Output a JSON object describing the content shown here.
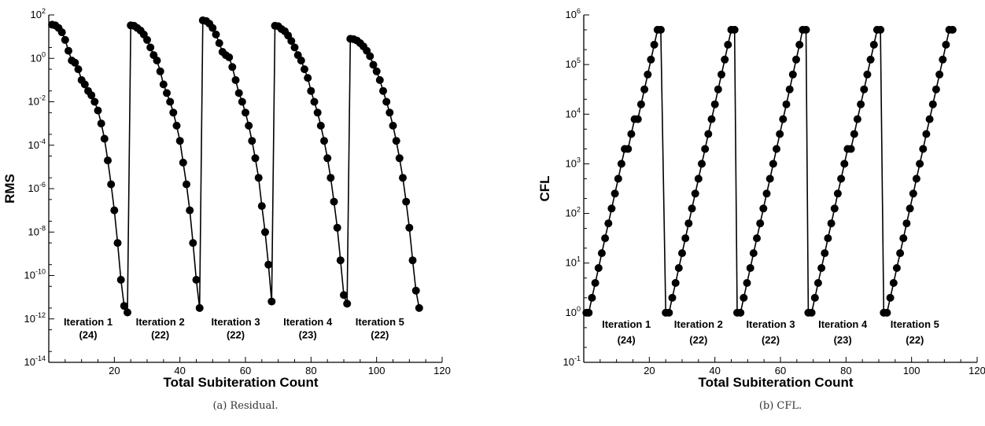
{
  "chart_data": [
    {
      "type": "scatter",
      "caption": "(a) Residual.",
      "xlabel": "Total Subiteration Count",
      "ylabel": "RMS",
      "xscale": "linear",
      "yscale": "log",
      "xlim": [
        0,
        120
      ],
      "ylim_exp": [
        -14,
        2
      ],
      "xticks": [
        20,
        40,
        60,
        80,
        100,
        120
      ],
      "yticks_exp": [
        -14,
        -12,
        -10,
        -8,
        -6,
        -4,
        -2,
        0,
        2
      ],
      "grid": false,
      "series": [
        {
          "x": [
            1,
            2,
            3,
            4,
            5,
            6,
            7,
            8,
            9,
            10,
            11,
            12,
            13,
            14,
            15,
            16,
            17,
            18,
            19,
            20,
            21,
            22,
            23,
            24,
            25,
            26,
            27,
            28,
            29,
            30,
            31,
            32,
            33,
            34,
            35,
            36,
            37,
            38,
            39,
            40,
            41,
            42,
            43,
            44,
            45,
            46,
            47,
            48,
            49,
            50,
            51,
            52,
            53,
            54,
            55,
            56,
            57,
            58,
            59,
            60,
            61,
            62,
            63,
            64,
            65,
            66,
            67,
            68,
            69,
            70,
            71,
            72,
            73,
            74,
            75,
            76,
            77,
            78,
            79,
            80,
            81,
            82,
            83,
            84,
            85,
            86,
            87,
            88,
            89,
            90,
            91,
            92,
            93,
            94,
            95,
            96,
            97,
            98,
            99,
            100,
            101,
            102,
            103,
            104,
            105,
            106,
            107,
            108,
            109,
            110,
            111,
            112,
            113
          ],
          "y_exp": [
            1.55,
            1.52,
            1.4,
            1.2,
            0.85,
            0.35,
            -0.1,
            -0.2,
            -0.5,
            -1.0,
            -1.2,
            -1.5,
            -1.7,
            -2.0,
            -2.4,
            -3.0,
            -3.7,
            -4.7,
            -5.8,
            -7.0,
            -8.5,
            -10.2,
            -11.4,
            -11.7,
            1.52,
            1.5,
            1.4,
            1.28,
            1.1,
            0.85,
            0.5,
            0.15,
            -0.1,
            -0.6,
            -1.2,
            -1.6,
            -2.0,
            -2.5,
            -3.1,
            -3.8,
            -4.8,
            -5.8,
            -7.0,
            -8.5,
            -10.2,
            -11.5,
            1.75,
            1.72,
            1.6,
            1.4,
            1.1,
            0.7,
            0.3,
            0.15,
            0.05,
            -0.4,
            -1.0,
            -1.6,
            -2.0,
            -2.5,
            -3.1,
            -3.8,
            -4.6,
            -5.5,
            -6.8,
            -8.0,
            -9.5,
            -11.2,
            1.5,
            1.48,
            1.35,
            1.25,
            1.05,
            0.8,
            0.5,
            0.15,
            -0.1,
            -0.5,
            -0.9,
            -1.5,
            -2.0,
            -2.5,
            -3.1,
            -3.8,
            -4.6,
            -5.5,
            -6.6,
            -7.8,
            -9.3,
            -10.9,
            -11.3,
            0.9,
            0.88,
            0.82,
            0.7,
            0.55,
            0.35,
            0.1,
            -0.3,
            -0.6,
            -1.0,
            -1.5,
            -2.0,
            -2.5,
            -3.1,
            -3.8,
            -4.6,
            -5.5,
            -6.6,
            -7.8,
            -9.3,
            -10.7,
            -11.5
          ]
        }
      ],
      "annotations": [
        {
          "line1": "Iteration 1",
          "line2": "(24)",
          "x": 12
        },
        {
          "line1": "Iteration 2",
          "line2": "(22)",
          "x": 34
        },
        {
          "line1": "Iteration 3",
          "line2": "(22)",
          "x": 57
        },
        {
          "line1": "Iteration 4",
          "line2": "(23)",
          "x": 79
        },
        {
          "line1": "Iteration 5",
          "line2": "(22)",
          "x": 101
        }
      ],
      "annot_y_exp": [
        -12.3,
        -12.9
      ]
    },
    {
      "type": "scatter",
      "caption": "(b) CFL.",
      "xlabel": "Total Subiteration Count",
      "ylabel": "CFL",
      "xscale": "linear",
      "yscale": "log",
      "xlim": [
        0,
        120
      ],
      "ylim_exp": [
        -1,
        6
      ],
      "xticks": [
        20,
        40,
        60,
        80,
        100,
        120
      ],
      "yticks_exp": [
        -1,
        0,
        1,
        2,
        3,
        4,
        5,
        6
      ],
      "grid": false,
      "series": [
        {
          "x": [
            0.8,
            1.5,
            2.5,
            3.5,
            4.5,
            5.5,
            6.5,
            7.5,
            8.5,
            9.5,
            10.5,
            11.5,
            12.5,
            13.5,
            14.5,
            15.5,
            16.5,
            17.5,
            18.5,
            19.5,
            20.5,
            21.5,
            22.5,
            23.5,
            25,
            26,
            27,
            28,
            29,
            30,
            31,
            32,
            33,
            34,
            35,
            36,
            37,
            38,
            39,
            40,
            41,
            42,
            43,
            44,
            45,
            46,
            46.8,
            47.8,
            48.8,
            49.8,
            50.8,
            51.8,
            52.8,
            53.8,
            54.8,
            55.8,
            56.8,
            57.8,
            58.8,
            59.8,
            60.8,
            61.8,
            62.8,
            63.8,
            64.8,
            65.8,
            66.8,
            67.8,
            68.5,
            69.5,
            70.5,
            71.5,
            72.5,
            73.5,
            74.5,
            75.5,
            76.5,
            77.5,
            78.5,
            79.5,
            80.5,
            81.5,
            82.5,
            83.5,
            84.5,
            85.5,
            86.5,
            87.5,
            88.5,
            89.5,
            90.5,
            91.5,
            92.5,
            93.5,
            94.5,
            95.5,
            96.5,
            97.5,
            98.5,
            99.5,
            100.5,
            101.5,
            102.5,
            103.5,
            104.5,
            105.5,
            106.5,
            107.5,
            108.5,
            109.5,
            110.5,
            111.5,
            112.5
          ],
          "y_exp": [
            0,
            0,
            0.3,
            0.6,
            0.9,
            1.2,
            1.5,
            1.8,
            2.1,
            2.4,
            2.7,
            3.0,
            3.3,
            3.3,
            3.6,
            3.9,
            3.9,
            4.2,
            4.5,
            4.8,
            5.1,
            5.4,
            5.7,
            5.7,
            0,
            0,
            0.3,
            0.6,
            0.9,
            1.2,
            1.5,
            1.8,
            2.1,
            2.4,
            2.7,
            3.0,
            3.3,
            3.6,
            3.9,
            4.2,
            4.5,
            4.8,
            5.1,
            5.4,
            5.7,
            5.7,
            0,
            0,
            0.3,
            0.6,
            0.9,
            1.2,
            1.5,
            1.8,
            2.1,
            2.4,
            2.7,
            3.0,
            3.3,
            3.6,
            3.9,
            4.2,
            4.5,
            4.8,
            5.1,
            5.4,
            5.7,
            5.7,
            0,
            0,
            0.3,
            0.6,
            0.9,
            1.2,
            1.5,
            1.8,
            2.1,
            2.4,
            2.7,
            3.0,
            3.3,
            3.3,
            3.6,
            3.9,
            4.2,
            4.5,
            4.8,
            5.1,
            5.4,
            5.7,
            5.7,
            0,
            0,
            0.3,
            0.6,
            0.9,
            1.2,
            1.5,
            1.8,
            2.1,
            2.4,
            2.7,
            3.0,
            3.3,
            3.6,
            3.9,
            4.2,
            4.5,
            4.8,
            5.1,
            5.4,
            5.7,
            5.7
          ]
        }
      ],
      "annotations": [
        {
          "line1": "Iteration 1",
          "line2": "(24)",
          "x": 13
        },
        {
          "line1": "Iteration 2",
          "line2": "(22)",
          "x": 35
        },
        {
          "line1": "Iteration 3",
          "line2": "(22)",
          "x": 57
        },
        {
          "line1": "Iteration 4",
          "line2": "(23)",
          "x": 79
        },
        {
          "line1": "Iteration 5",
          "line2": "(22)",
          "x": 101
        }
      ],
      "annot_y_exp": [
        -0.3,
        -0.62
      ]
    }
  ]
}
